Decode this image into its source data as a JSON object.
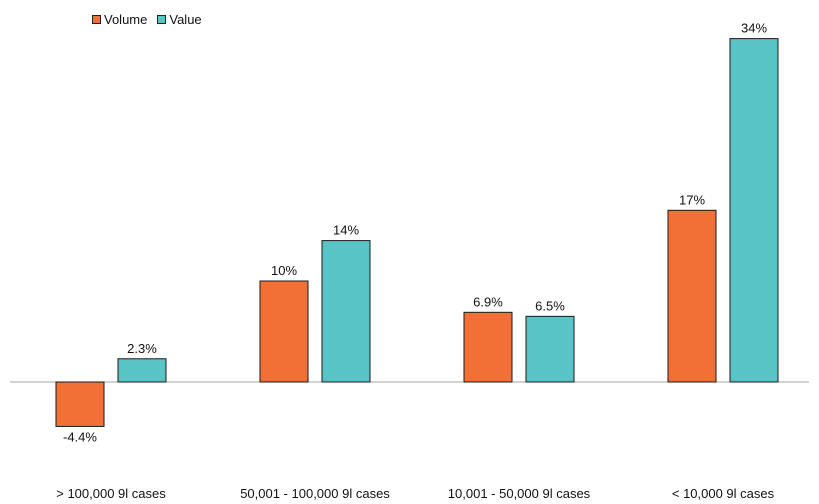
{
  "chart_data": {
    "type": "bar",
    "categories": [
      "> 100,000 9l cases",
      "50,001 - 100,000 9l cases",
      "10,001 - 50,000 9l cases",
      "< 10,000 9l cases"
    ],
    "series": [
      {
        "name": "Volume",
        "color": "#F26F35",
        "values": [
          -4.4,
          10,
          6.9,
          17
        ],
        "labels": [
          "-4.4%",
          "10%",
          "6.9%",
          "17%"
        ]
      },
      {
        "name": "Value",
        "color": "#58C4C5",
        "values": [
          2.3,
          14,
          6.5,
          34
        ],
        "labels": [
          "2.3%",
          "14%",
          "6.5%",
          "34%"
        ]
      }
    ],
    "title": "",
    "xlabel": "",
    "ylabel": "",
    "ylim": [
      -5,
      35
    ],
    "grid": false,
    "legend_position": "top-left",
    "y_axis_visible": false
  }
}
